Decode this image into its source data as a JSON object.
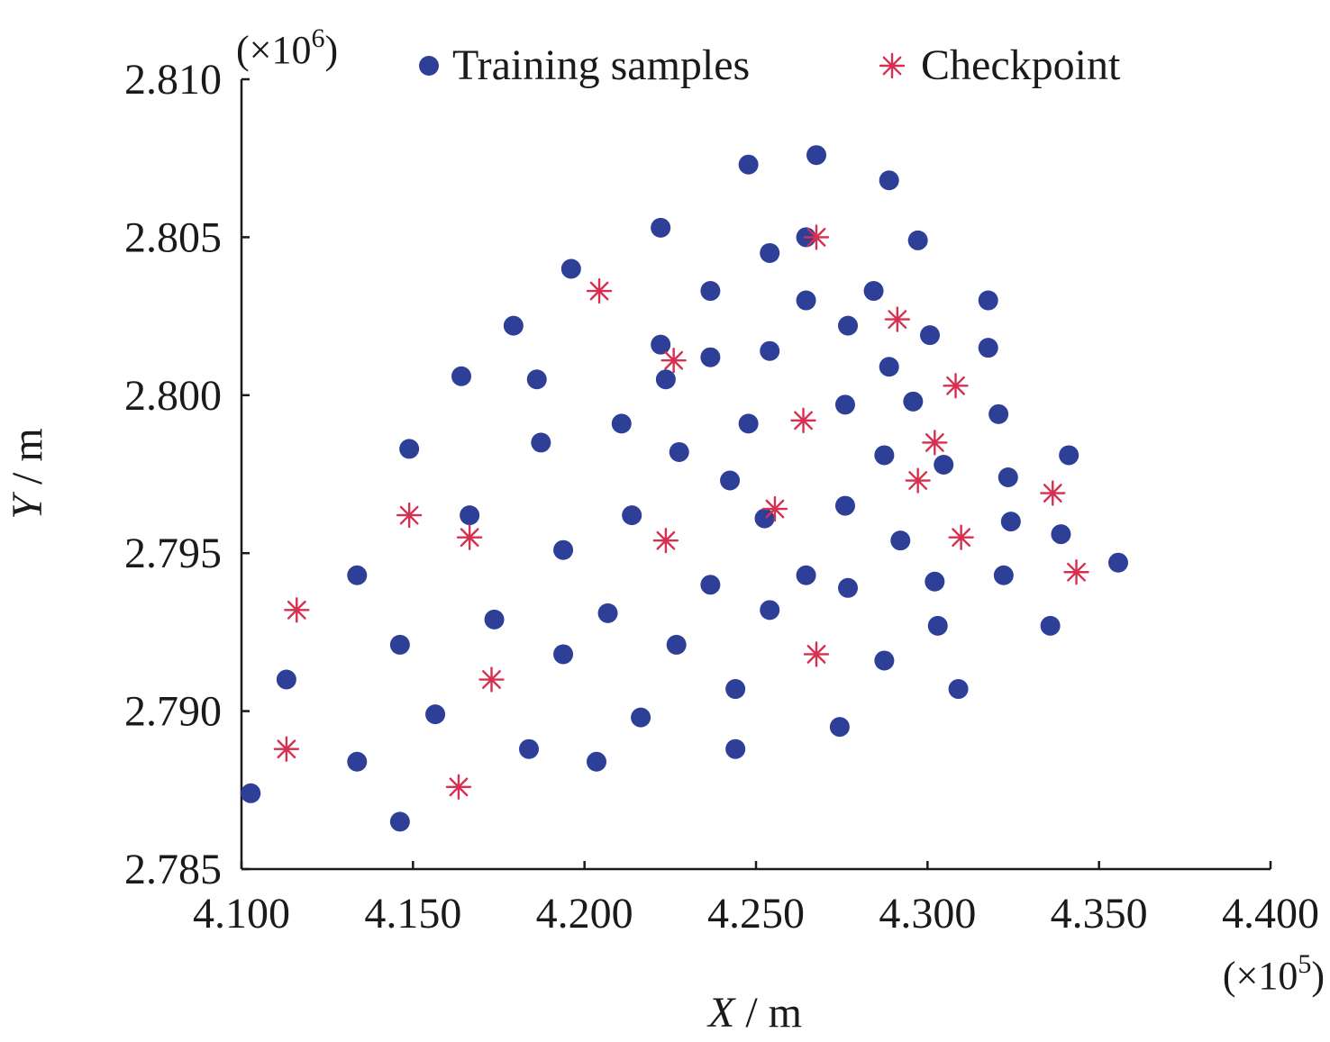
{
  "chart_data": {
    "type": "scatter",
    "xlabel_var": "X",
    "xlabel_unit": " / m",
    "ylabel_var": "Y",
    "ylabel_unit": " / m",
    "x_multiplier_base": "(×10",
    "x_multiplier_exp": "5",
    "x_multiplier_end": ")",
    "y_multiplier_base": "(×10",
    "y_multiplier_exp": "6",
    "y_multiplier_end": ")",
    "xlim": [
      4.1,
      4.4
    ],
    "ylim": [
      2.785,
      2.81
    ],
    "x_ticks": [
      4.1,
      4.15,
      4.2,
      4.25,
      4.3,
      4.35,
      4.4
    ],
    "x_tick_labels": [
      "4.100",
      "4.150",
      "4.200",
      "4.250",
      "4.300",
      "4.350",
      "4.400"
    ],
    "y_ticks": [
      2.785,
      2.79,
      2.795,
      2.8,
      2.805,
      2.81
    ],
    "y_tick_labels": [
      "2.785",
      "2.790",
      "2.795",
      "2.800",
      "2.805",
      "2.810"
    ],
    "grid": false,
    "legend_position": "top",
    "series": [
      {
        "name": "Training samples",
        "marker": "circle",
        "color": "#2e3f98",
        "points": [
          [
            4.1027,
            2.7874
          ],
          [
            4.1131,
            2.791
          ],
          [
            4.1337,
            2.7884
          ],
          [
            4.1337,
            2.7943
          ],
          [
            4.1462,
            2.7865
          ],
          [
            4.1462,
            2.7921
          ],
          [
            4.1489,
            2.7983
          ],
          [
            4.1565,
            2.7899
          ],
          [
            4.1641,
            2.8006
          ],
          [
            4.1665,
            2.7962
          ],
          [
            4.1737,
            2.7929
          ],
          [
            4.1793,
            2.8022
          ],
          [
            4.1838,
            2.7888
          ],
          [
            4.1861,
            2.8005
          ],
          [
            4.1873,
            2.7985
          ],
          [
            4.1938,
            2.7951
          ],
          [
            4.1938,
            2.7918
          ],
          [
            4.1961,
            2.804
          ],
          [
            4.2035,
            2.7884
          ],
          [
            4.2068,
            2.7931
          ],
          [
            4.2108,
            2.7991
          ],
          [
            4.2138,
            2.7962
          ],
          [
            4.2164,
            2.7898
          ],
          [
            4.2222,
            2.8016
          ],
          [
            4.2222,
            2.8053
          ],
          [
            4.2237,
            2.8005
          ],
          [
            4.2268,
            2.7921
          ],
          [
            4.2276,
            2.7982
          ],
          [
            4.2367,
            2.794
          ],
          [
            4.2367,
            2.8012
          ],
          [
            4.2367,
            2.8033
          ],
          [
            4.2424,
            2.7973
          ],
          [
            4.244,
            2.7907
          ],
          [
            4.244,
            2.7888
          ],
          [
            4.2478,
            2.8073
          ],
          [
            4.2478,
            2.7991
          ],
          [
            4.2525,
            2.7961
          ],
          [
            4.254,
            2.8045
          ],
          [
            4.254,
            2.8014
          ],
          [
            4.254,
            2.7932
          ],
          [
            4.2646,
            2.803
          ],
          [
            4.2646,
            2.805
          ],
          [
            4.2646,
            2.7943
          ],
          [
            4.2676,
            2.8076
          ],
          [
            4.2744,
            2.7895
          ],
          [
            4.276,
            2.7997
          ],
          [
            4.276,
            2.7965
          ],
          [
            4.2768,
            2.8022
          ],
          [
            4.2768,
            2.7939
          ],
          [
            4.2843,
            2.8033
          ],
          [
            4.2874,
            2.7916
          ],
          [
            4.2874,
            2.7981
          ],
          [
            4.2888,
            2.8009
          ],
          [
            4.2888,
            2.8068
          ],
          [
            4.2921,
            2.7954
          ],
          [
            4.2958,
            2.7998
          ],
          [
            4.2972,
            2.8049
          ],
          [
            4.3007,
            2.8019
          ],
          [
            4.3021,
            2.7941
          ],
          [
            4.303,
            2.7927
          ],
          [
            4.3047,
            2.7978
          ],
          [
            4.309,
            2.7907
          ],
          [
            4.3177,
            2.803
          ],
          [
            4.3177,
            2.8015
          ],
          [
            4.3207,
            2.7994
          ],
          [
            4.3222,
            2.7943
          ],
          [
            4.3235,
            2.7974
          ],
          [
            4.3243,
            2.796
          ],
          [
            4.3358,
            2.7927
          ],
          [
            4.3389,
            2.7956
          ],
          [
            4.3412,
            2.7981
          ],
          [
            4.3556,
            2.7947
          ]
        ]
      },
      {
        "name": "Checkpoint",
        "marker": "asterisk",
        "color": "#d62f4f",
        "points": [
          [
            4.1131,
            2.7888
          ],
          [
            4.1161,
            2.7932
          ],
          [
            4.1489,
            2.7962
          ],
          [
            4.1633,
            2.7876
          ],
          [
            4.1665,
            2.7955
          ],
          [
            4.1729,
            2.791
          ],
          [
            4.2043,
            2.8033
          ],
          [
            4.2237,
            2.7954
          ],
          [
            4.226,
            2.8011
          ],
          [
            4.2555,
            2.7964
          ],
          [
            4.2638,
            2.7992
          ],
          [
            4.2676,
            2.7918
          ],
          [
            4.2676,
            2.805
          ],
          [
            4.2912,
            2.8024
          ],
          [
            4.2972,
            2.7973
          ],
          [
            4.3021,
            2.7985
          ],
          [
            4.3082,
            2.8003
          ],
          [
            4.3098,
            2.7955
          ],
          [
            4.3365,
            2.7969
          ],
          [
            4.3434,
            2.7944
          ]
        ]
      }
    ]
  }
}
